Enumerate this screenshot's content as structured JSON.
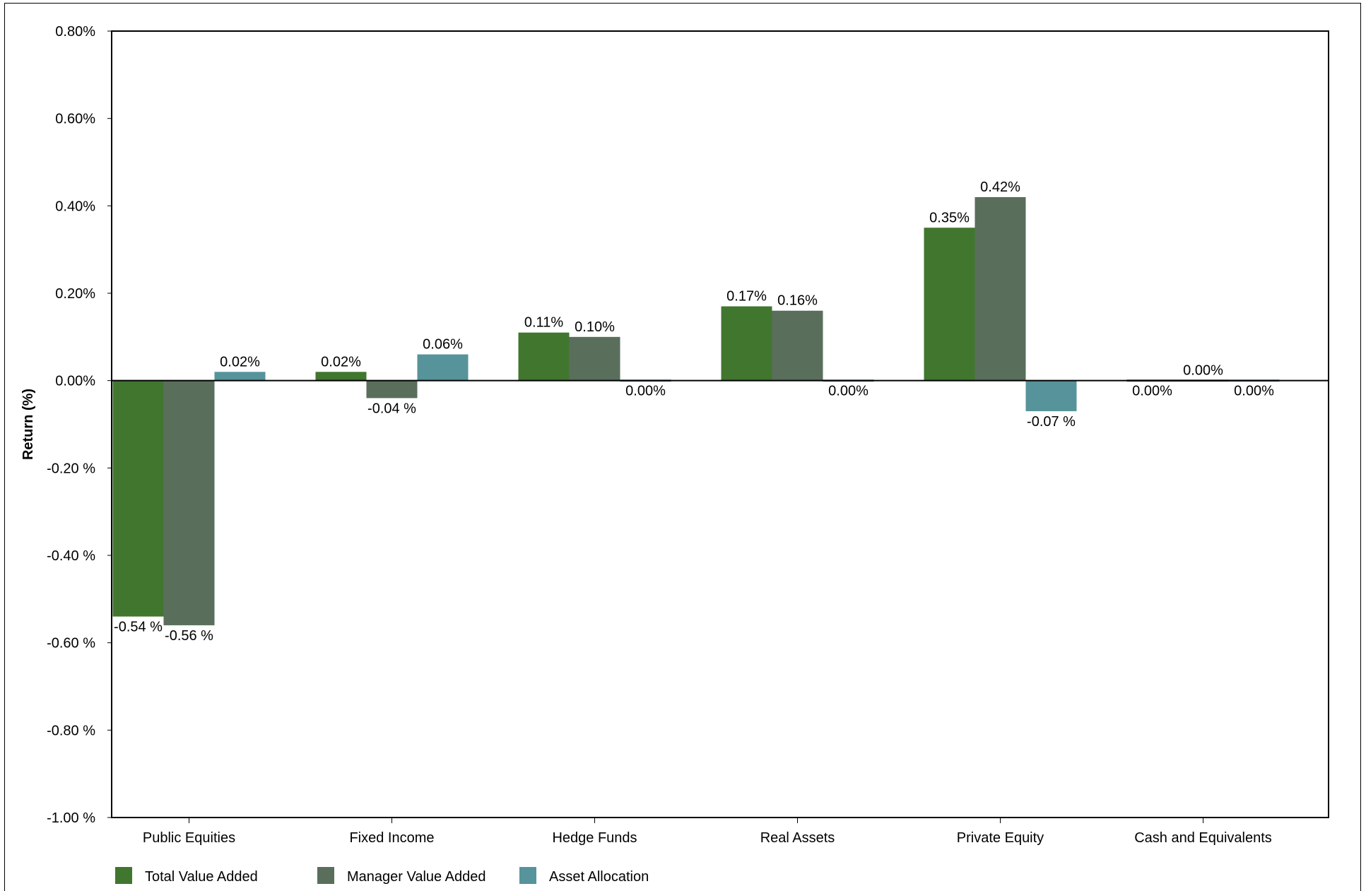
{
  "chart_data": {
    "type": "bar",
    "title": "",
    "xlabel": "",
    "ylabel": "Return (%)",
    "categories": [
      "Public Equities",
      "Fixed Income",
      "Hedge Funds",
      "Real Assets",
      "Private Equity",
      "Cash and Equivalents"
    ],
    "series": [
      {
        "name": "Total Value Added",
        "color": "#41762f",
        "values": [
          -0.54,
          0.02,
          0.11,
          0.17,
          0.35,
          0.0
        ],
        "labels": [
          "-0.54 %",
          "0.02%",
          "0.11%",
          "0.17%",
          "0.35%",
          "0.00%"
        ]
      },
      {
        "name": "Manager Value Added",
        "color": "#5a6e5c",
        "values": [
          -0.56,
          -0.04,
          0.1,
          0.16,
          0.42,
          0.0
        ],
        "labels": [
          "-0.56 %",
          "-0.04 %",
          "0.10%",
          "0.16%",
          "0.42%",
          "0.00%"
        ]
      },
      {
        "name": "Asset Allocation",
        "color": "#56939b",
        "values": [
          0.02,
          0.06,
          0.0,
          0.0,
          -0.07,
          0.0
        ],
        "labels": [
          "0.02%",
          "0.06%",
          "0.00%",
          "0.00%",
          "-0.07 %",
          "0.00%"
        ]
      }
    ],
    "ylim": [
      -1.0,
      0.8
    ],
    "yticks": [
      {
        "value": 0.8,
        "label": "0.80%"
      },
      {
        "value": 0.6,
        "label": "0.60%"
      },
      {
        "value": 0.4,
        "label": "0.40%"
      },
      {
        "value": 0.2,
        "label": "0.20%"
      },
      {
        "value": 0.0,
        "label": "0.00%"
      },
      {
        "value": -0.2,
        "label": "-0.20 %"
      },
      {
        "value": -0.4,
        "label": "-0.40 %"
      },
      {
        "value": -0.6,
        "label": "-0.60 %"
      },
      {
        "value": -0.8,
        "label": "-0.80 %"
      },
      {
        "value": -1.0,
        "label": "-1.00 %"
      }
    ],
    "grid": false,
    "legend_position": "bottom-left"
  }
}
